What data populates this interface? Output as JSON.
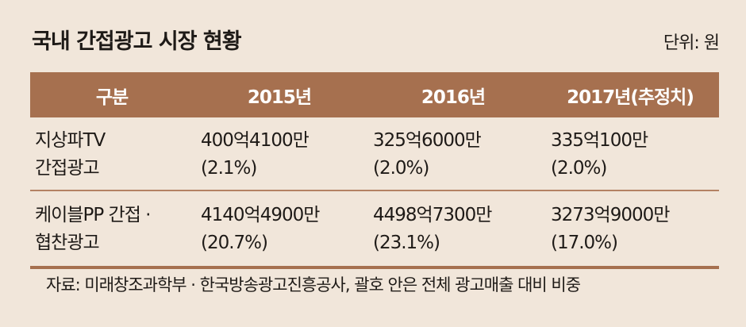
{
  "title": "국내 간접광고 시장 현황",
  "unit": "단위: 원",
  "table": {
    "headers": [
      "구분",
      "2015년",
      "2016년",
      "2017년(추정치)"
    ],
    "rows": [
      {
        "category": [
          "지상파TV",
          "간접광고"
        ],
        "cells": [
          [
            "400억4100만",
            "(2.1%)"
          ],
          [
            "325억6000만",
            "(2.0%)"
          ],
          [
            "335억100만",
            "(2.0%)"
          ]
        ]
      },
      {
        "category": [
          "케이블PP 간접 ·",
          "협찬광고"
        ],
        "cells": [
          [
            "4140억4900만",
            "(20.7%)"
          ],
          [
            "4498억7300만",
            "(23.1%)"
          ],
          [
            "3273억9000만",
            "(17.0%)"
          ]
        ]
      }
    ]
  },
  "source": "자료: 미래창조과학부 · 한국방송광고진흥공사, 괄호 안은 전체 광고매출 대비 비중"
}
